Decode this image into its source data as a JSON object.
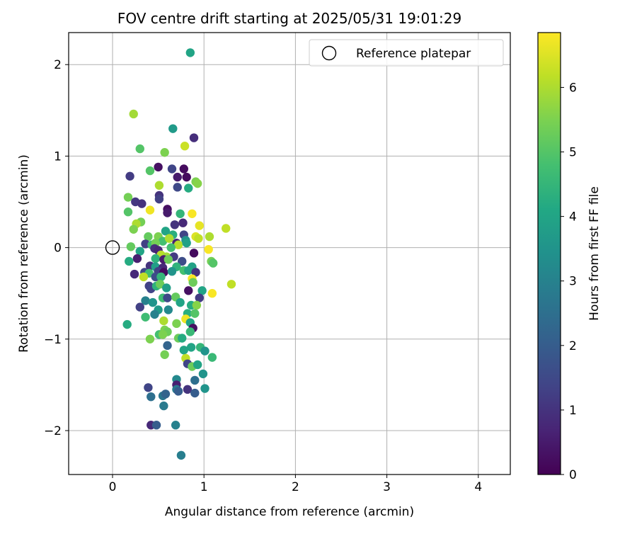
{
  "chart_data": {
    "type": "scatter",
    "title": "FOV centre drift starting at 2025/05/31 19:01:29",
    "xlabel": "Angular distance from reference (arcmin)",
    "ylabel": "Rotation from reference (arcmin)",
    "xlim": [
      -0.48,
      4.35
    ],
    "ylim": [
      -2.48,
      2.35
    ],
    "xticks": [
      0,
      1,
      2,
      3,
      4
    ],
    "xtick_labels": [
      "0",
      "1",
      "2",
      "3",
      "4"
    ],
    "yticks": [
      -2,
      -1,
      0,
      1,
      2
    ],
    "ytick_labels": [
      "−2",
      "−1",
      "0",
      "1",
      "2"
    ],
    "grid": true,
    "legend": {
      "placement": "top-right",
      "entries": [
        {
          "label": "Reference platepar",
          "marker": "open-circle"
        }
      ]
    },
    "reference_point": {
      "x": 0,
      "y": 0
    },
    "colorbar": {
      "label": "Hours from first FF file",
      "range": [
        0,
        6.85
      ],
      "ticks": [
        0,
        1,
        2,
        3,
        4,
        5,
        6
      ],
      "tick_labels": [
        "0",
        "1",
        "2",
        "3",
        "4",
        "5",
        "6"
      ],
      "colormap": "viridis"
    },
    "points": [
      {
        "x": 0.85,
        "y": 2.13,
        "c": 4.0
      },
      {
        "x": 0.23,
        "y": 1.46,
        "c": 5.9
      },
      {
        "x": 0.89,
        "y": 1.2,
        "c": 0.9
      },
      {
        "x": 0.66,
        "y": 1.3,
        "c": 3.7
      },
      {
        "x": 0.3,
        "y": 1.08,
        "c": 5.0
      },
      {
        "x": 0.57,
        "y": 1.04,
        "c": 5.5
      },
      {
        "x": 0.79,
        "y": 1.11,
        "c": 6.3
      },
      {
        "x": 0.5,
        "y": 0.88,
        "c": 0.3
      },
      {
        "x": 0.65,
        "y": 0.86,
        "c": 1.4
      },
      {
        "x": 0.78,
        "y": 0.86,
        "c": 0.2
      },
      {
        "x": 0.41,
        "y": 0.84,
        "c": 5.0
      },
      {
        "x": 0.19,
        "y": 0.78,
        "c": 1.2
      },
      {
        "x": 0.71,
        "y": 0.77,
        "c": 0.5
      },
      {
        "x": 0.81,
        "y": 0.77,
        "c": 0.2
      },
      {
        "x": 0.91,
        "y": 0.72,
        "c": 5.5
      },
      {
        "x": 0.93,
        "y": 0.7,
        "c": 5.6
      },
      {
        "x": 0.51,
        "y": 0.68,
        "c": 6.0
      },
      {
        "x": 0.71,
        "y": 0.66,
        "c": 1.5
      },
      {
        "x": 0.83,
        "y": 0.65,
        "c": 4.2
      },
      {
        "x": 0.17,
        "y": 0.55,
        "c": 5.4
      },
      {
        "x": 0.51,
        "y": 0.57,
        "c": 1.0
      },
      {
        "x": 0.51,
        "y": 0.53,
        "c": 1.3
      },
      {
        "x": 0.25,
        "y": 0.5,
        "c": 1.1
      },
      {
        "x": 0.32,
        "y": 0.48,
        "c": 1.0
      },
      {
        "x": 0.6,
        "y": 0.42,
        "c": 0.3
      },
      {
        "x": 0.6,
        "y": 0.38,
        "c": 0.5
      },
      {
        "x": 0.41,
        "y": 0.41,
        "c": 6.7
      },
      {
        "x": 0.17,
        "y": 0.39,
        "c": 5.0
      },
      {
        "x": 0.74,
        "y": 0.37,
        "c": 4.5
      },
      {
        "x": 0.87,
        "y": 0.37,
        "c": 6.8
      },
      {
        "x": 0.31,
        "y": 0.28,
        "c": 5.4
      },
      {
        "x": 0.26,
        "y": 0.26,
        "c": 6.0
      },
      {
        "x": 0.68,
        "y": 0.25,
        "c": 1.0
      },
      {
        "x": 0.77,
        "y": 0.27,
        "c": 0.8
      },
      {
        "x": 0.95,
        "y": 0.24,
        "c": 6.6
      },
      {
        "x": 1.24,
        "y": 0.21,
        "c": 6.2
      },
      {
        "x": 0.23,
        "y": 0.2,
        "c": 5.5
      },
      {
        "x": 0.58,
        "y": 0.18,
        "c": 4.0
      },
      {
        "x": 0.78,
        "y": 0.14,
        "c": 1.4
      },
      {
        "x": 0.39,
        "y": 0.12,
        "c": 5.2
      },
      {
        "x": 0.5,
        "y": 0.12,
        "c": 5.5
      },
      {
        "x": 0.66,
        "y": 0.14,
        "c": 4.3
      },
      {
        "x": 0.91,
        "y": 0.12,
        "c": 6.5
      },
      {
        "x": 1.06,
        "y": 0.12,
        "c": 6.0
      },
      {
        "x": 0.55,
        "y": 0.07,
        "c": 4.8
      },
      {
        "x": 0.62,
        "y": 0.1,
        "c": 6.0
      },
      {
        "x": 0.8,
        "y": 0.08,
        "c": 3.5
      },
      {
        "x": 0.94,
        "y": 0.1,
        "c": 6.2
      },
      {
        "x": 0.36,
        "y": 0.04,
        "c": 1.3
      },
      {
        "x": 0.43,
        "y": 0.03,
        "c": 4.7
      },
      {
        "x": 0.47,
        "y": 0.05,
        "c": 5.4
      },
      {
        "x": 0.7,
        "y": 0.05,
        "c": 0.7
      },
      {
        "x": 0.72,
        "y": 0.03,
        "c": 6.1
      },
      {
        "x": 0.81,
        "y": 0.05,
        "c": 3.9
      },
      {
        "x": 0.2,
        "y": 0.01,
        "c": 5.2
      },
      {
        "x": 0.46,
        "y": -0.01,
        "c": 0.9
      },
      {
        "x": 0.5,
        "y": -0.03,
        "c": 0.7
      },
      {
        "x": 0.64,
        "y": 0.0,
        "c": 4.8
      },
      {
        "x": 1.05,
        "y": -0.02,
        "c": 6.8
      },
      {
        "x": 0.3,
        "y": -0.04,
        "c": 4.0
      },
      {
        "x": 0.53,
        "y": -0.08,
        "c": 6.1
      },
      {
        "x": 0.59,
        "y": -0.1,
        "c": 5.9
      },
      {
        "x": 0.67,
        "y": -0.1,
        "c": 1.2
      },
      {
        "x": 0.89,
        "y": -0.06,
        "c": 0.2
      },
      {
        "x": 0.27,
        "y": -0.12,
        "c": 0.6
      },
      {
        "x": 0.47,
        "y": -0.12,
        "c": 4.4
      },
      {
        "x": 0.56,
        "y": -0.13,
        "c": 0.5
      },
      {
        "x": 0.18,
        "y": -0.15,
        "c": 4.2
      },
      {
        "x": 0.61,
        "y": -0.13,
        "c": 5.3
      },
      {
        "x": 0.76,
        "y": -0.15,
        "c": 1.6
      },
      {
        "x": 1.08,
        "y": -0.15,
        "c": 5.4
      },
      {
        "x": 1.1,
        "y": -0.17,
        "c": 5.0
      },
      {
        "x": 0.41,
        "y": -0.2,
        "c": 1.0
      },
      {
        "x": 0.47,
        "y": -0.21,
        "c": 3.8
      },
      {
        "x": 0.55,
        "y": -0.22,
        "c": 0.8
      },
      {
        "x": 0.7,
        "y": -0.21,
        "c": 4.4
      },
      {
        "x": 0.87,
        "y": -0.21,
        "c": 3.9
      },
      {
        "x": 0.24,
        "y": -0.29,
        "c": 0.8
      },
      {
        "x": 0.35,
        "y": -0.27,
        "c": 1.5
      },
      {
        "x": 0.4,
        "y": -0.28,
        "c": 4.7
      },
      {
        "x": 0.5,
        "y": -0.26,
        "c": 1.3
      },
      {
        "x": 0.56,
        "y": -0.27,
        "c": 0.2
      },
      {
        "x": 0.65,
        "y": -0.26,
        "c": 3.5
      },
      {
        "x": 0.78,
        "y": -0.25,
        "c": 4.8
      },
      {
        "x": 0.83,
        "y": -0.25,
        "c": 4.0
      },
      {
        "x": 0.91,
        "y": -0.27,
        "c": 1.0
      },
      {
        "x": 0.34,
        "y": -0.32,
        "c": 6.2
      },
      {
        "x": 0.47,
        "y": -0.32,
        "c": 1.6
      },
      {
        "x": 0.53,
        "y": -0.32,
        "c": 4.5
      },
      {
        "x": 0.87,
        "y": -0.34,
        "c": 6.8
      },
      {
        "x": 0.88,
        "y": -0.38,
        "c": 5.3
      },
      {
        "x": 1.3,
        "y": -0.4,
        "c": 6.2
      },
      {
        "x": 0.4,
        "y": -0.42,
        "c": 1.3
      },
      {
        "x": 0.42,
        "y": -0.45,
        "c": 1.4
      },
      {
        "x": 0.48,
        "y": -0.42,
        "c": 4.4
      },
      {
        "x": 0.52,
        "y": -0.4,
        "c": 5.3
      },
      {
        "x": 0.59,
        "y": -0.44,
        "c": 3.8
      },
      {
        "x": 0.83,
        "y": -0.47,
        "c": 0.3
      },
      {
        "x": 0.98,
        "y": -0.47,
        "c": 4.0
      },
      {
        "x": 1.09,
        "y": -0.5,
        "c": 6.8
      },
      {
        "x": 0.55,
        "y": -0.55,
        "c": 4.7
      },
      {
        "x": 0.6,
        "y": -0.55,
        "c": 1.5
      },
      {
        "x": 0.69,
        "y": -0.54,
        "c": 5.2
      },
      {
        "x": 0.95,
        "y": -0.55,
        "c": 1.2
      },
      {
        "x": 0.36,
        "y": -0.58,
        "c": 3.0
      },
      {
        "x": 0.44,
        "y": -0.6,
        "c": 3.5
      },
      {
        "x": 0.74,
        "y": -0.6,
        "c": 4.0
      },
      {
        "x": 0.3,
        "y": -0.65,
        "c": 1.3
      },
      {
        "x": 0.5,
        "y": -0.68,
        "c": 3.7
      },
      {
        "x": 0.61,
        "y": -0.68,
        "c": 3.2
      },
      {
        "x": 0.86,
        "y": -0.63,
        "c": 4.2
      },
      {
        "x": 0.92,
        "y": -0.63,
        "c": 5.6
      },
      {
        "x": 0.36,
        "y": -0.76,
        "c": 4.7
      },
      {
        "x": 0.46,
        "y": -0.73,
        "c": 3.0
      },
      {
        "x": 0.82,
        "y": -0.72,
        "c": 4.3
      },
      {
        "x": 0.9,
        "y": -0.72,
        "c": 5.0
      },
      {
        "x": 0.16,
        "y": -0.84,
        "c": 4.2
      },
      {
        "x": 0.56,
        "y": -0.8,
        "c": 6.0
      },
      {
        "x": 0.7,
        "y": -0.83,
        "c": 5.5
      },
      {
        "x": 0.8,
        "y": -0.78,
        "c": 6.7
      },
      {
        "x": 0.85,
        "y": -0.82,
        "c": 4.0
      },
      {
        "x": 0.88,
        "y": -0.88,
        "c": 0.3
      },
      {
        "x": 0.57,
        "y": -0.9,
        "c": 5.5
      },
      {
        "x": 0.6,
        "y": -0.92,
        "c": 5.3
      },
      {
        "x": 0.85,
        "y": -0.92,
        "c": 4.6
      },
      {
        "x": 0.51,
        "y": -0.95,
        "c": 4.8
      },
      {
        "x": 0.55,
        "y": -0.95,
        "c": 5.5
      },
      {
        "x": 0.41,
        "y": -1.0,
        "c": 5.5
      },
      {
        "x": 0.72,
        "y": -0.99,
        "c": 5.3
      },
      {
        "x": 0.76,
        "y": -0.99,
        "c": 4.2
      },
      {
        "x": 0.6,
        "y": -1.07,
        "c": 2.2
      },
      {
        "x": 0.78,
        "y": -1.12,
        "c": 4.0
      },
      {
        "x": 0.86,
        "y": -1.09,
        "c": 4.0
      },
      {
        "x": 0.96,
        "y": -1.09,
        "c": 4.5
      },
      {
        "x": 1.01,
        "y": -1.13,
        "c": 3.5
      },
      {
        "x": 0.57,
        "y": -1.17,
        "c": 5.4
      },
      {
        "x": 1.09,
        "y": -1.2,
        "c": 4.6
      },
      {
        "x": 0.8,
        "y": -1.21,
        "c": 6.2
      },
      {
        "x": 0.82,
        "y": -1.27,
        "c": 1.4
      },
      {
        "x": 0.87,
        "y": -1.3,
        "c": 5.3
      },
      {
        "x": 0.93,
        "y": -1.28,
        "c": 4.0
      },
      {
        "x": 0.99,
        "y": -1.38,
        "c": 3.5
      },
      {
        "x": 0.7,
        "y": -1.44,
        "c": 3.2
      },
      {
        "x": 0.7,
        "y": -1.5,
        "c": 0.6
      },
      {
        "x": 0.9,
        "y": -1.45,
        "c": 2.5
      },
      {
        "x": 0.39,
        "y": -1.53,
        "c": 1.4
      },
      {
        "x": 0.7,
        "y": -1.55,
        "c": 2.8
      },
      {
        "x": 0.72,
        "y": -1.57,
        "c": 2.0
      },
      {
        "x": 0.82,
        "y": -1.55,
        "c": 1.0
      },
      {
        "x": 0.9,
        "y": -1.59,
        "c": 2.0
      },
      {
        "x": 1.01,
        "y": -1.54,
        "c": 3.5
      },
      {
        "x": 0.42,
        "y": -1.63,
        "c": 2.5
      },
      {
        "x": 0.55,
        "y": -1.62,
        "c": 2.7
      },
      {
        "x": 0.58,
        "y": -1.6,
        "c": 2.2
      },
      {
        "x": 0.56,
        "y": -1.73,
        "c": 2.8
      },
      {
        "x": 0.42,
        "y": -1.94,
        "c": 0.8
      },
      {
        "x": 0.48,
        "y": -1.94,
        "c": 2.0
      },
      {
        "x": 0.69,
        "y": -1.94,
        "c": 3.0
      },
      {
        "x": 0.75,
        "y": -2.27,
        "c": 2.9
      }
    ]
  }
}
